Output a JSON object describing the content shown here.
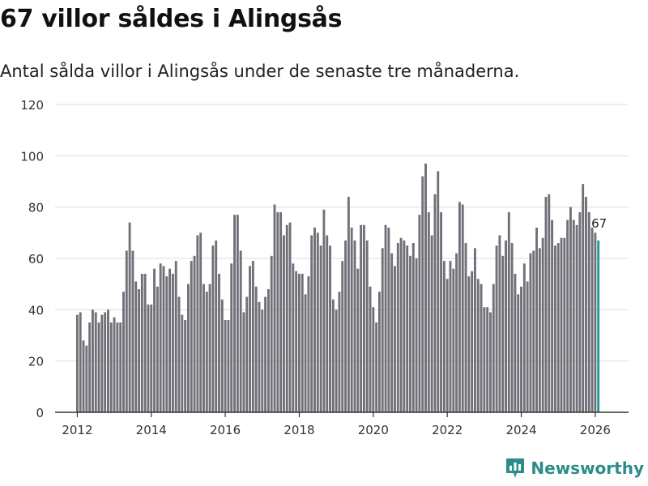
{
  "page": {
    "title": "67 villor såldes i Alingsås",
    "subtitle": "Antal sålda villor i Alingsås under de senaste tre månaderna."
  },
  "brand": {
    "name": "Newsworthy",
    "icon": "newsworthy-logo-icon",
    "color": "#2d8c8a"
  },
  "colors": {
    "bar": "#707078",
    "highlight": "#1f9a96",
    "grid": "#dcdcdc",
    "axis": "#333333"
  },
  "chart_data": {
    "type": "bar",
    "title": "67 villor såldes i Alingsås",
    "subtitle": "Antal sålda villor i Alingsås under de senaste tre månaderna.",
    "xlabel": "",
    "ylabel": "",
    "ylim": [
      0,
      120
    ],
    "yticks": [
      0,
      20,
      40,
      60,
      80,
      100,
      120
    ],
    "xlim": [
      2011.4,
      2026.9
    ],
    "xticks": [
      2012,
      2014,
      2016,
      2018,
      2020,
      2022,
      2024,
      2026
    ],
    "start": 2012.0,
    "step": 0.0833333,
    "values": [
      38,
      39,
      28,
      26,
      35,
      40,
      39,
      35,
      38,
      39,
      40,
      35,
      37,
      35,
      35,
      47,
      63,
      74,
      63,
      51,
      48,
      54,
      54,
      42,
      42,
      56,
      49,
      58,
      57,
      53,
      56,
      54,
      59,
      45,
      38,
      36,
      50,
      59,
      61,
      69,
      70,
      50,
      47,
      50,
      65,
      67,
      54,
      44,
      36,
      36,
      58,
      77,
      77,
      63,
      39,
      45,
      57,
      59,
      49,
      43,
      40,
      45,
      48,
      61,
      81,
      78,
      78,
      69,
      73,
      74,
      58,
      55,
      54,
      54,
      46,
      53,
      69,
      72,
      70,
      65,
      79,
      69,
      65,
      44,
      40,
      47,
      59,
      67,
      84,
      72,
      67,
      56,
      73,
      73,
      67,
      49,
      41,
      35,
      47,
      64,
      73,
      72,
      62,
      57,
      66,
      68,
      67,
      65,
      61,
      66,
      60,
      77,
      92,
      97,
      78,
      69,
      85,
      94,
      78,
      59,
      52,
      59,
      56,
      62,
      82,
      81,
      66,
      53,
      55,
      64,
      52,
      50,
      41,
      41,
      39,
      50,
      65,
      69,
      61,
      67,
      78,
      66,
      54,
      46,
      49,
      58,
      51,
      62,
      63,
      72,
      64,
      68,
      84,
      85,
      75,
      65,
      66,
      68,
      68,
      75,
      80,
      75,
      73,
      78,
      89,
      84,
      78,
      72,
      70,
      67
    ],
    "highlight_last": true,
    "last_label": "67"
  }
}
